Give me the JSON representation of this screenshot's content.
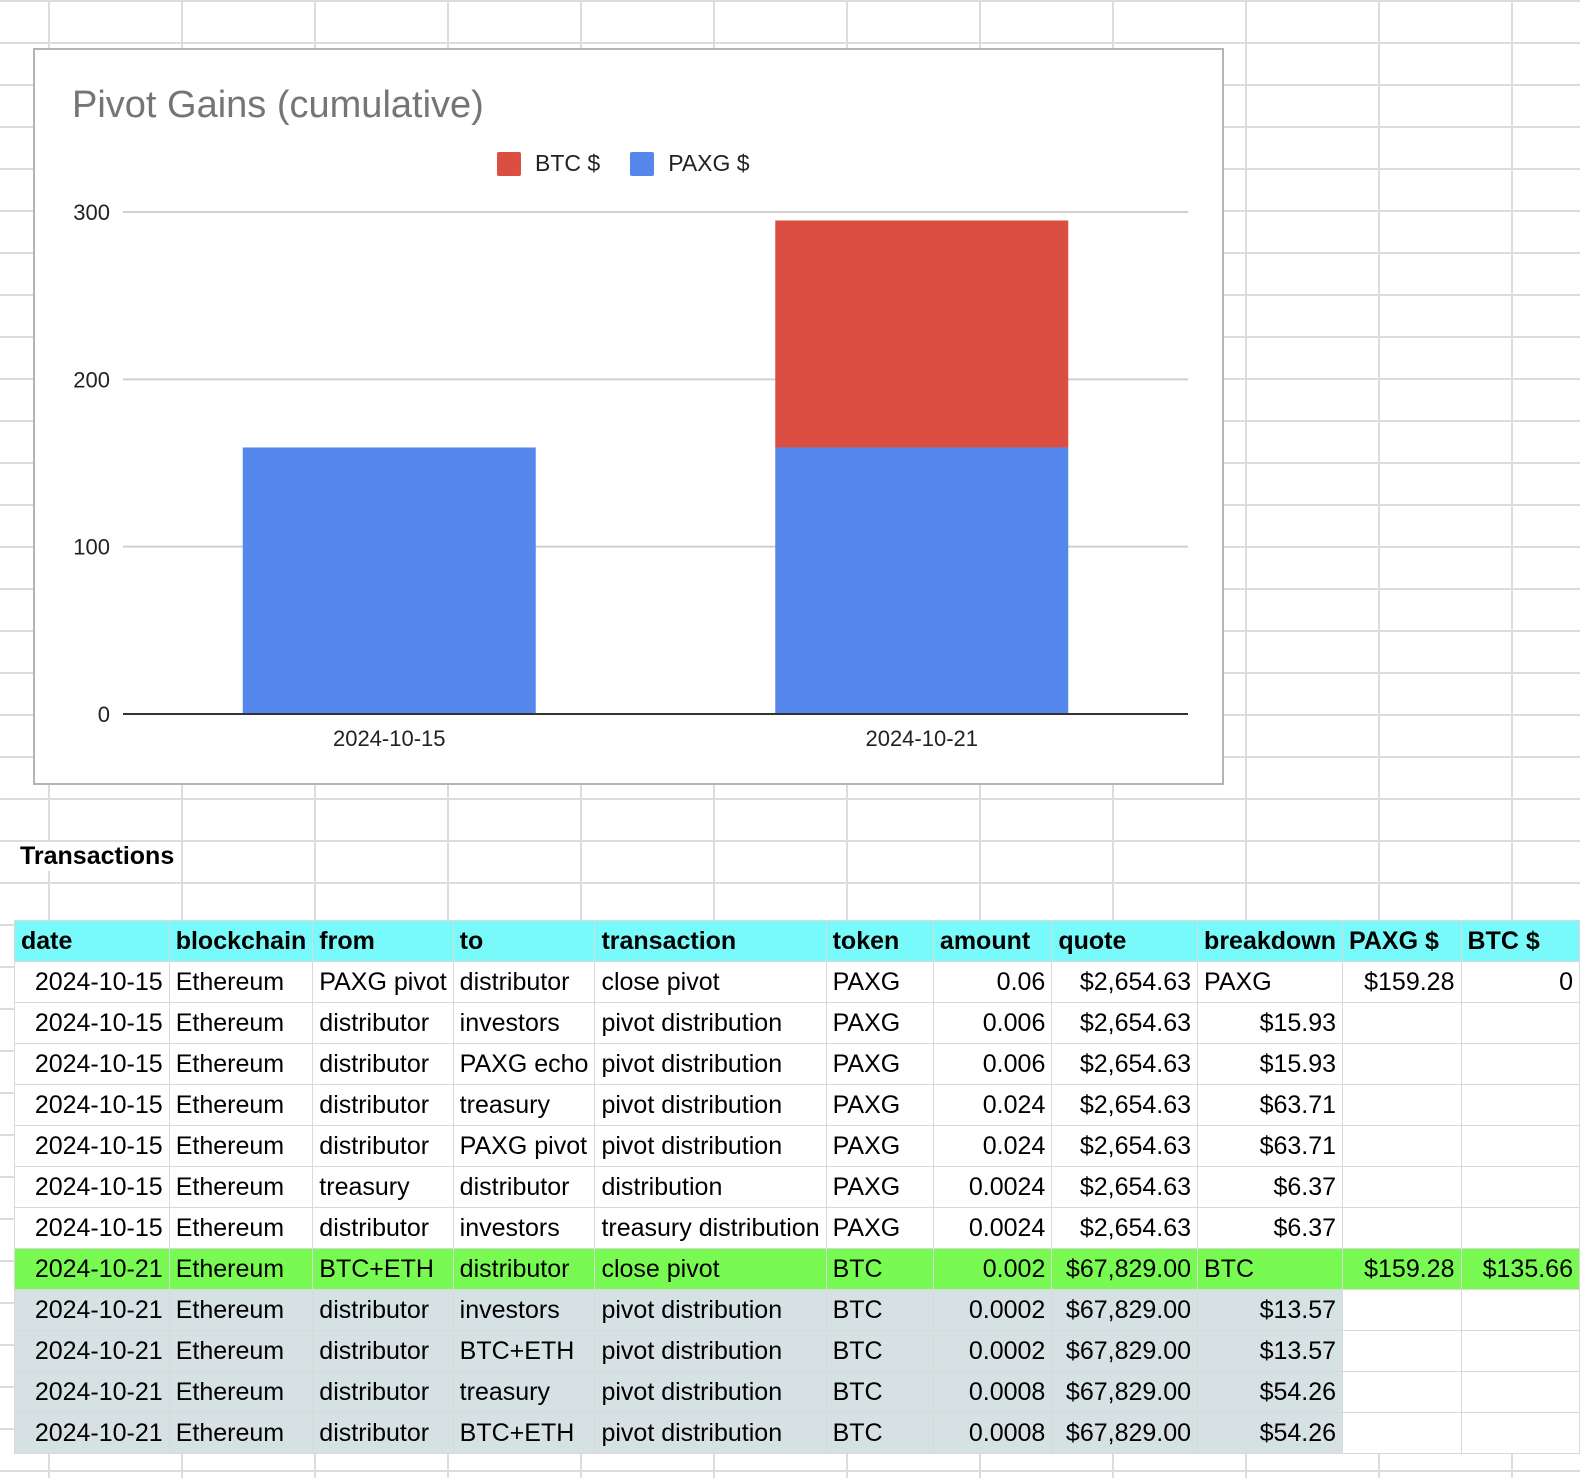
{
  "chart_data": {
    "type": "bar",
    "stacked": true,
    "title": "Pivot Gains (cumulative)",
    "categories": [
      "2024-10-15",
      "2024-10-21"
    ],
    "series": [
      {
        "name": "BTC $",
        "color": "#db4f42",
        "values": [
          0,
          135.66
        ]
      },
      {
        "name": "PAXG $",
        "color": "#5587ec",
        "values": [
          159.28,
          159.28
        ]
      }
    ],
    "ylim": [
      0,
      300
    ],
    "yticks": [
      "0",
      "100",
      "200",
      "300"
    ],
    "grid": true,
    "legend": "top"
  },
  "table": {
    "section_title": "Transactions",
    "headers": [
      "date",
      "blockchain",
      "from",
      "to",
      "transaction",
      "token",
      "amount",
      "quote",
      "breakdown",
      "PAXG $",
      "BTC $"
    ],
    "rows": [
      [
        "2024-10-15",
        "Ethereum",
        "PAXG pivot",
        "distributor",
        "close pivot",
        "PAXG",
        "0.06",
        "$2,654.63",
        "PAXG",
        "$159.28",
        "0"
      ],
      [
        "2024-10-15",
        "Ethereum",
        "distributor",
        "investors",
        "pivot distribution",
        "PAXG",
        "0.006",
        "$2,654.63",
        "$15.93",
        "",
        ""
      ],
      [
        "2024-10-15",
        "Ethereum",
        "distributor",
        "PAXG echo",
        "pivot distribution",
        "PAXG",
        "0.006",
        "$2,654.63",
        "$15.93",
        "",
        ""
      ],
      [
        "2024-10-15",
        "Ethereum",
        "distributor",
        "treasury",
        "pivot distribution",
        "PAXG",
        "0.024",
        "$2,654.63",
        "$63.71",
        "",
        ""
      ],
      [
        "2024-10-15",
        "Ethereum",
        "distributor",
        "PAXG pivot",
        "pivot distribution",
        "PAXG",
        "0.024",
        "$2,654.63",
        "$63.71",
        "",
        ""
      ],
      [
        "2024-10-15",
        "Ethereum",
        "treasury",
        "distributor",
        "distribution",
        "PAXG",
        "0.0024",
        "$2,654.63",
        "$6.37",
        "",
        ""
      ],
      [
        "2024-10-15",
        "Ethereum",
        "distributor",
        "investors",
        "treasury distribution",
        "PAXG",
        "0.0024",
        "$2,654.63",
        "$6.37",
        "",
        ""
      ],
      [
        "2024-10-21",
        "Ethereum",
        "BTC+ETH",
        "distributor",
        "close pivot",
        "BTC",
        "0.002",
        "$67,829.00",
        "BTC",
        "$159.28",
        "$135.66"
      ],
      [
        "2024-10-21",
        "Ethereum",
        "distributor",
        "investors",
        "pivot distribution",
        "BTC",
        "0.0002",
        "$67,829.00",
        "$13.57",
        "",
        ""
      ],
      [
        "2024-10-21",
        "Ethereum",
        "distributor",
        "BTC+ETH",
        "pivot distribution",
        "BTC",
        "0.0002",
        "$67,829.00",
        "$13.57",
        "",
        ""
      ],
      [
        "2024-10-21",
        "Ethereum",
        "distributor",
        "treasury",
        "pivot distribution",
        "BTC",
        "0.0008",
        "$67,829.00",
        "$54.26",
        "",
        ""
      ],
      [
        "2024-10-21",
        "Ethereum",
        "distributor",
        "BTC+ETH",
        "pivot distribution",
        "BTC",
        "0.0008",
        "$67,829.00",
        "$54.26",
        "",
        ""
      ]
    ],
    "highlight_row_index": 7,
    "header_color": "#79fafa",
    "highlight_color": "#78fa53",
    "gray_color": "#d6e1e4"
  }
}
